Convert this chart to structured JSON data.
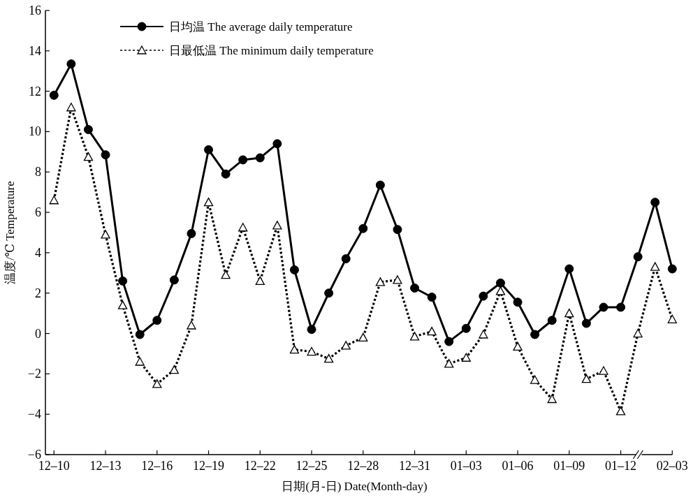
{
  "chart_data": {
    "type": "line",
    "xlabel": "日期(月-日)  Date(Month-day)",
    "ylabel": "温度/℃  Temperature",
    "categories": [
      "12–10",
      null,
      null,
      "12–13",
      null,
      null,
      "12–16",
      null,
      null,
      "12–19",
      null,
      null,
      "12–22",
      null,
      null,
      "12–25",
      null,
      null,
      "12–28",
      null,
      null,
      "12–31",
      null,
      null,
      "01–03",
      null,
      null,
      "01–06",
      null,
      null,
      "01–09",
      null,
      null,
      "01–12",
      null,
      null,
      "02–03"
    ],
    "series": [
      {
        "name": "日均温 The average daily temperature",
        "color": "#000000",
        "marker": "circle",
        "line_style": "solid",
        "values": [
          11.8,
          13.35,
          10.1,
          8.85,
          2.6,
          -0.05,
          0.65,
          2.65,
          4.95,
          9.1,
          7.9,
          8.6,
          8.7,
          9.4,
          3.15,
          0.2,
          2.0,
          3.7,
          5.2,
          7.35,
          5.15,
          2.25,
          1.8,
          -0.4,
          0.25,
          1.85,
          2.5,
          1.55,
          -0.05,
          0.65,
          3.2,
          0.5,
          1.3,
          1.3,
          3.8,
          6.5,
          3.2
        ]
      },
      {
        "name": "日最低温 The minimum daily temperature",
        "color": "#000000",
        "marker": "triangle",
        "line_style": "dotted",
        "values": [
          6.6,
          11.2,
          8.75,
          4.9,
          1.4,
          -1.4,
          -2.5,
          -1.8,
          0.4,
          6.5,
          2.9,
          5.25,
          2.6,
          5.35,
          -0.8,
          -0.9,
          -1.25,
          -0.6,
          -0.2,
          2.55,
          2.65,
          -0.15,
          0.1,
          -1.5,
          -1.2,
          -0.05,
          2.1,
          -0.65,
          -2.3,
          -3.25,
          1.0,
          -2.25,
          -1.85,
          -3.85,
          0.0,
          3.3,
          0.7
        ]
      }
    ],
    "ylim": [
      -6,
      16
    ],
    "yticks": [
      -6,
      -4,
      -2,
      0,
      2,
      4,
      6,
      8,
      10,
      12,
      14,
      16
    ],
    "legend": "top left"
  }
}
